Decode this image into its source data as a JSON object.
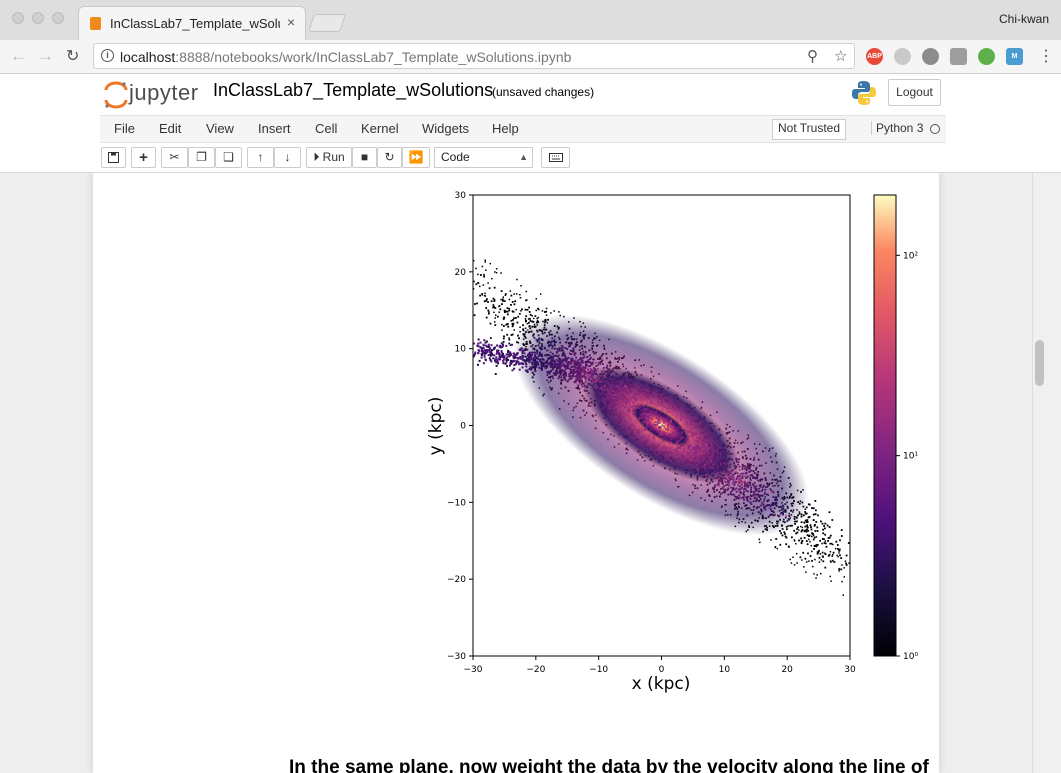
{
  "browser": {
    "tab_title": "InClassLab7_Template_wSolutions",
    "tab_close": "×",
    "profile_name": "Chi-kwan",
    "url_host": "localhost",
    "url_rest": ":8888/notebooks/work/InClassLab7_Template_wSolutions.ipynb",
    "back_icon": "←",
    "forward_icon": "→",
    "reload_icon": "↻",
    "zoom_icon": "⚲",
    "star_icon": "☆",
    "menu_icon": "⋮",
    "extensions": [
      {
        "name": "adblock-icon",
        "label": "ABP",
        "color": "#e8493b"
      },
      {
        "name": "cloud-icon",
        "label": "",
        "color": "#c9c9c9"
      },
      {
        "name": "cast-icon",
        "label": "",
        "color": "#8c8c8c"
      },
      {
        "name": "square-extension-icon",
        "label": "",
        "color": "#9e9e9e"
      },
      {
        "name": "circle-extension-icon",
        "label": "",
        "color": "#5fb04a"
      },
      {
        "name": "m-extension-icon",
        "label": "M",
        "color": "#4a9dd0"
      }
    ]
  },
  "jupyter": {
    "logo_text": "jupyter",
    "notebook_name": "InClassLab7_Template_wSolutions",
    "save_status": "(unsaved changes)",
    "logout_label": "Logout",
    "menu": [
      "File",
      "Edit",
      "View",
      "Insert",
      "Cell",
      "Kernel",
      "Widgets",
      "Help"
    ],
    "trust_status": "Not Trusted",
    "kernel_name": "Python 3",
    "toolbar": {
      "run_label": "Run",
      "cell_type": "Code"
    }
  },
  "notebook": {
    "markdown_text": "In the same plane, now weight the data by the velocity along the line of"
  },
  "chart_data": {
    "type": "heatmap",
    "title": "",
    "xlabel": "x (kpc)",
    "ylabel": "y (kpc)",
    "xlim": [
      -30,
      30
    ],
    "ylim": [
      -30,
      30
    ],
    "xticks": [
      "−30",
      "−20",
      "−10",
      "0",
      "10",
      "20",
      "30"
    ],
    "yticks": [
      "30",
      "20",
      "10",
      "0",
      "−10",
      "−20",
      "−30"
    ],
    "colorbar": {
      "scale": "log",
      "colormap": "magma",
      "range": [
        1,
        200
      ],
      "ticks": [
        "10²",
        "10¹",
        "10⁰"
      ],
      "tick_values": [
        100,
        10,
        1
      ]
    },
    "description_values": {
      "peak_center": [
        0,
        0
      ],
      "disk_major_axis_angle_deg": -33
    }
  }
}
